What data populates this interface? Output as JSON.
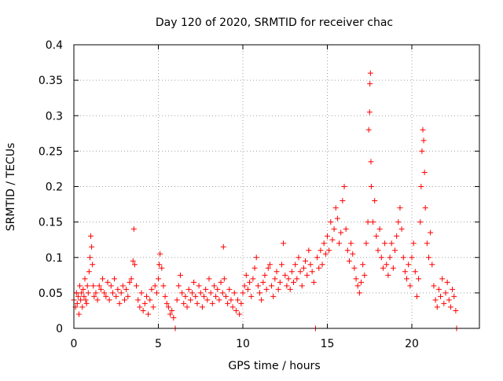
{
  "chart_data": {
    "type": "scatter",
    "title": "Day 120 of 2020, SRMTID for receiver chac",
    "xlabel": "GPS time / hours",
    "ylabel": "SRMTID / TECUs",
    "xlim": [
      0,
      24
    ],
    "ylim": [
      0,
      0.4
    ],
    "xticks": [
      0,
      5,
      10,
      15,
      20
    ],
    "xtick_labels": [
      "0",
      "5",
      "10",
      "15",
      "20"
    ],
    "yticks": [
      0,
      0.05,
      0.1,
      0.15,
      0.2,
      0.25,
      0.3,
      0.35,
      0.4
    ],
    "ytick_labels": [
      "0",
      "0.05",
      "0.1",
      "0.15",
      "0.2",
      "0.25",
      "0.3",
      "0.35",
      "0.4"
    ],
    "grid": true,
    "marker": "+",
    "color": "#ff0000",
    "series": [
      {
        "name": "SRMTID",
        "points": [
          [
            0.0,
            0.04
          ],
          [
            0.1,
            0.03
          ],
          [
            0.15,
            0.05
          ],
          [
            0.2,
            0.035
          ],
          [
            0.25,
            0.045
          ],
          [
            0.3,
            0.02
          ],
          [
            0.35,
            0.06
          ],
          [
            0.4,
            0.04
          ],
          [
            0.45,
            0.05
          ],
          [
            0.5,
            0.03
          ],
          [
            0.55,
            0.055
          ],
          [
            0.6,
            0.045
          ],
          [
            0.65,
            0.07
          ],
          [
            0.7,
            0.04
          ],
          [
            0.75,
            0.035
          ],
          [
            0.8,
            0.06
          ],
          [
            0.85,
            0.05
          ],
          [
            0.9,
            0.08
          ],
          [
            0.95,
            0.1
          ],
          [
            1.0,
            0.13
          ],
          [
            1.05,
            0.115
          ],
          [
            1.1,
            0.09
          ],
          [
            1.15,
            0.06
          ],
          [
            1.2,
            0.045
          ],
          [
            1.3,
            0.05
          ],
          [
            1.4,
            0.04
          ],
          [
            1.5,
            0.06
          ],
          [
            1.6,
            0.055
          ],
          [
            1.7,
            0.07
          ],
          [
            1.8,
            0.05
          ],
          [
            1.9,
            0.045
          ],
          [
            2.0,
            0.065
          ],
          [
            2.1,
            0.04
          ],
          [
            2.2,
            0.06
          ],
          [
            2.3,
            0.05
          ],
          [
            2.4,
            0.07
          ],
          [
            2.5,
            0.045
          ],
          [
            2.6,
            0.055
          ],
          [
            2.7,
            0.035
          ],
          [
            2.8,
            0.05
          ],
          [
            2.9,
            0.06
          ],
          [
            3.0,
            0.04
          ],
          [
            3.1,
            0.055
          ],
          [
            3.2,
            0.045
          ],
          [
            3.3,
            0.065
          ],
          [
            3.4,
            0.07
          ],
          [
            3.5,
            0.095
          ],
          [
            3.55,
            0.14
          ],
          [
            3.6,
            0.09
          ],
          [
            3.7,
            0.06
          ],
          [
            3.8,
            0.04
          ],
          [
            3.9,
            0.03
          ],
          [
            4.0,
            0.05
          ],
          [
            4.1,
            0.025
          ],
          [
            4.2,
            0.035
          ],
          [
            4.3,
            0.045
          ],
          [
            4.4,
            0.02
          ],
          [
            4.5,
            0.04
          ],
          [
            4.6,
            0.055
          ],
          [
            4.7,
            0.03
          ],
          [
            4.8,
            0.06
          ],
          [
            4.9,
            0.05
          ],
          [
            5.0,
            0.07
          ],
          [
            5.05,
            0.09
          ],
          [
            5.1,
            0.105
          ],
          [
            5.2,
            0.085
          ],
          [
            5.3,
            0.06
          ],
          [
            5.4,
            0.045
          ],
          [
            5.5,
            0.035
          ],
          [
            5.6,
            0.03
          ],
          [
            5.7,
            0.02
          ],
          [
            5.8,
            0.025
          ],
          [
            5.9,
            0.015
          ],
          [
            6.0,
            0.0
          ],
          [
            6.1,
            0.04
          ],
          [
            6.2,
            0.06
          ],
          [
            6.3,
            0.075
          ],
          [
            6.4,
            0.05
          ],
          [
            6.5,
            0.035
          ],
          [
            6.6,
            0.045
          ],
          [
            6.7,
            0.03
          ],
          [
            6.8,
            0.055
          ],
          [
            6.9,
            0.04
          ],
          [
            7.0,
            0.05
          ],
          [
            7.1,
            0.065
          ],
          [
            7.2,
            0.045
          ],
          [
            7.3,
            0.035
          ],
          [
            7.4,
            0.06
          ],
          [
            7.5,
            0.05
          ],
          [
            7.6,
            0.03
          ],
          [
            7.7,
            0.045
          ],
          [
            7.8,
            0.055
          ],
          [
            7.9,
            0.04
          ],
          [
            8.0,
            0.07
          ],
          [
            8.1,
            0.05
          ],
          [
            8.2,
            0.035
          ],
          [
            8.3,
            0.06
          ],
          [
            8.4,
            0.045
          ],
          [
            8.5,
            0.055
          ],
          [
            8.6,
            0.04
          ],
          [
            8.7,
            0.065
          ],
          [
            8.8,
            0.05
          ],
          [
            8.85,
            0.115
          ],
          [
            8.9,
            0.07
          ],
          [
            9.0,
            0.045
          ],
          [
            9.1,
            0.035
          ],
          [
            9.2,
            0.055
          ],
          [
            9.3,
            0.04
          ],
          [
            9.4,
            0.03
          ],
          [
            9.5,
            0.05
          ],
          [
            9.6,
            0.025
          ],
          [
            9.7,
            0.04
          ],
          [
            9.8,
            0.02
          ],
          [
            9.9,
            0.035
          ],
          [
            10.0,
            0.05
          ],
          [
            10.1,
            0.06
          ],
          [
            10.2,
            0.075
          ],
          [
            10.3,
            0.055
          ],
          [
            10.4,
            0.065
          ],
          [
            10.5,
            0.045
          ],
          [
            10.6,
            0.07
          ],
          [
            10.7,
            0.085
          ],
          [
            10.8,
            0.1
          ],
          [
            10.9,
            0.06
          ],
          [
            11.0,
            0.05
          ],
          [
            11.1,
            0.04
          ],
          [
            11.2,
            0.065
          ],
          [
            11.3,
            0.075
          ],
          [
            11.4,
            0.055
          ],
          [
            11.5,
            0.085
          ],
          [
            11.6,
            0.09
          ],
          [
            11.7,
            0.06
          ],
          [
            11.8,
            0.045
          ],
          [
            11.9,
            0.07
          ],
          [
            12.0,
            0.08
          ],
          [
            12.1,
            0.055
          ],
          [
            12.2,
            0.065
          ],
          [
            12.3,
            0.09
          ],
          [
            12.4,
            0.12
          ],
          [
            12.5,
            0.075
          ],
          [
            12.6,
            0.06
          ],
          [
            12.7,
            0.07
          ],
          [
            12.8,
            0.055
          ],
          [
            12.9,
            0.08
          ],
          [
            13.0,
            0.065
          ],
          [
            13.1,
            0.09
          ],
          [
            13.2,
            0.07
          ],
          [
            13.3,
            0.1
          ],
          [
            13.4,
            0.08
          ],
          [
            13.5,
            0.06
          ],
          [
            13.6,
            0.085
          ],
          [
            13.7,
            0.095
          ],
          [
            13.8,
            0.075
          ],
          [
            13.9,
            0.11
          ],
          [
            14.0,
            0.09
          ],
          [
            14.1,
            0.08
          ],
          [
            14.2,
            0.065
          ],
          [
            14.3,
            0.0
          ],
          [
            14.4,
            0.1
          ],
          [
            14.5,
            0.085
          ],
          [
            14.6,
            0.11
          ],
          [
            14.7,
            0.09
          ],
          [
            14.8,
            0.12
          ],
          [
            14.9,
            0.105
          ],
          [
            15.0,
            0.13
          ],
          [
            15.1,
            0.11
          ],
          [
            15.2,
            0.15
          ],
          [
            15.3,
            0.125
          ],
          [
            15.4,
            0.14
          ],
          [
            15.5,
            0.17
          ],
          [
            15.6,
            0.155
          ],
          [
            15.7,
            0.12
          ],
          [
            15.8,
            0.135
          ],
          [
            15.9,
            0.18
          ],
          [
            16.0,
            0.2
          ],
          [
            16.1,
            0.14
          ],
          [
            16.2,
            0.11
          ],
          [
            16.3,
            0.095
          ],
          [
            16.4,
            0.12
          ],
          [
            16.5,
            0.105
          ],
          [
            16.6,
            0.085
          ],
          [
            16.7,
            0.07
          ],
          [
            16.8,
            0.06
          ],
          [
            16.9,
            0.05
          ],
          [
            17.0,
            0.065
          ],
          [
            17.1,
            0.09
          ],
          [
            17.2,
            0.075
          ],
          [
            17.3,
            0.12
          ],
          [
            17.4,
            0.15
          ],
          [
            17.45,
            0.28
          ],
          [
            17.5,
            0.305
          ],
          [
            17.52,
            0.345
          ],
          [
            17.55,
            0.36
          ],
          [
            17.58,
            0.235
          ],
          [
            17.6,
            0.2
          ],
          [
            17.7,
            0.15
          ],
          [
            17.8,
            0.18
          ],
          [
            17.9,
            0.13
          ],
          [
            18.0,
            0.11
          ],
          [
            18.1,
            0.14
          ],
          [
            18.2,
            0.1
          ],
          [
            18.3,
            0.085
          ],
          [
            18.4,
            0.12
          ],
          [
            18.5,
            0.09
          ],
          [
            18.6,
            0.075
          ],
          [
            18.7,
            0.1
          ],
          [
            18.8,
            0.12
          ],
          [
            18.9,
            0.085
          ],
          [
            19.0,
            0.11
          ],
          [
            19.1,
            0.13
          ],
          [
            19.2,
            0.15
          ],
          [
            19.3,
            0.17
          ],
          [
            19.4,
            0.14
          ],
          [
            19.5,
            0.1
          ],
          [
            19.6,
            0.08
          ],
          [
            19.7,
            0.07
          ],
          [
            19.8,
            0.09
          ],
          [
            19.9,
            0.06
          ],
          [
            20.0,
            0.1
          ],
          [
            20.1,
            0.12
          ],
          [
            20.2,
            0.08
          ],
          [
            20.3,
            0.045
          ],
          [
            20.4,
            0.07
          ],
          [
            20.5,
            0.15
          ],
          [
            20.55,
            0.2
          ],
          [
            20.6,
            0.25
          ],
          [
            20.65,
            0.28
          ],
          [
            20.7,
            0.265
          ],
          [
            20.75,
            0.22
          ],
          [
            20.8,
            0.17
          ],
          [
            20.9,
            0.12
          ],
          [
            21.0,
            0.1
          ],
          [
            21.1,
            0.135
          ],
          [
            21.2,
            0.09
          ],
          [
            21.3,
            0.06
          ],
          [
            21.4,
            0.04
          ],
          [
            21.5,
            0.03
          ],
          [
            21.6,
            0.055
          ],
          [
            21.7,
            0.045
          ],
          [
            21.8,
            0.07
          ],
          [
            21.9,
            0.035
          ],
          [
            22.0,
            0.05
          ],
          [
            22.1,
            0.065
          ],
          [
            22.2,
            0.04
          ],
          [
            22.3,
            0.03
          ],
          [
            22.4,
            0.055
          ],
          [
            22.5,
            0.045
          ],
          [
            22.6,
            0.025
          ],
          [
            22.65,
            0.0
          ]
        ]
      }
    ]
  }
}
